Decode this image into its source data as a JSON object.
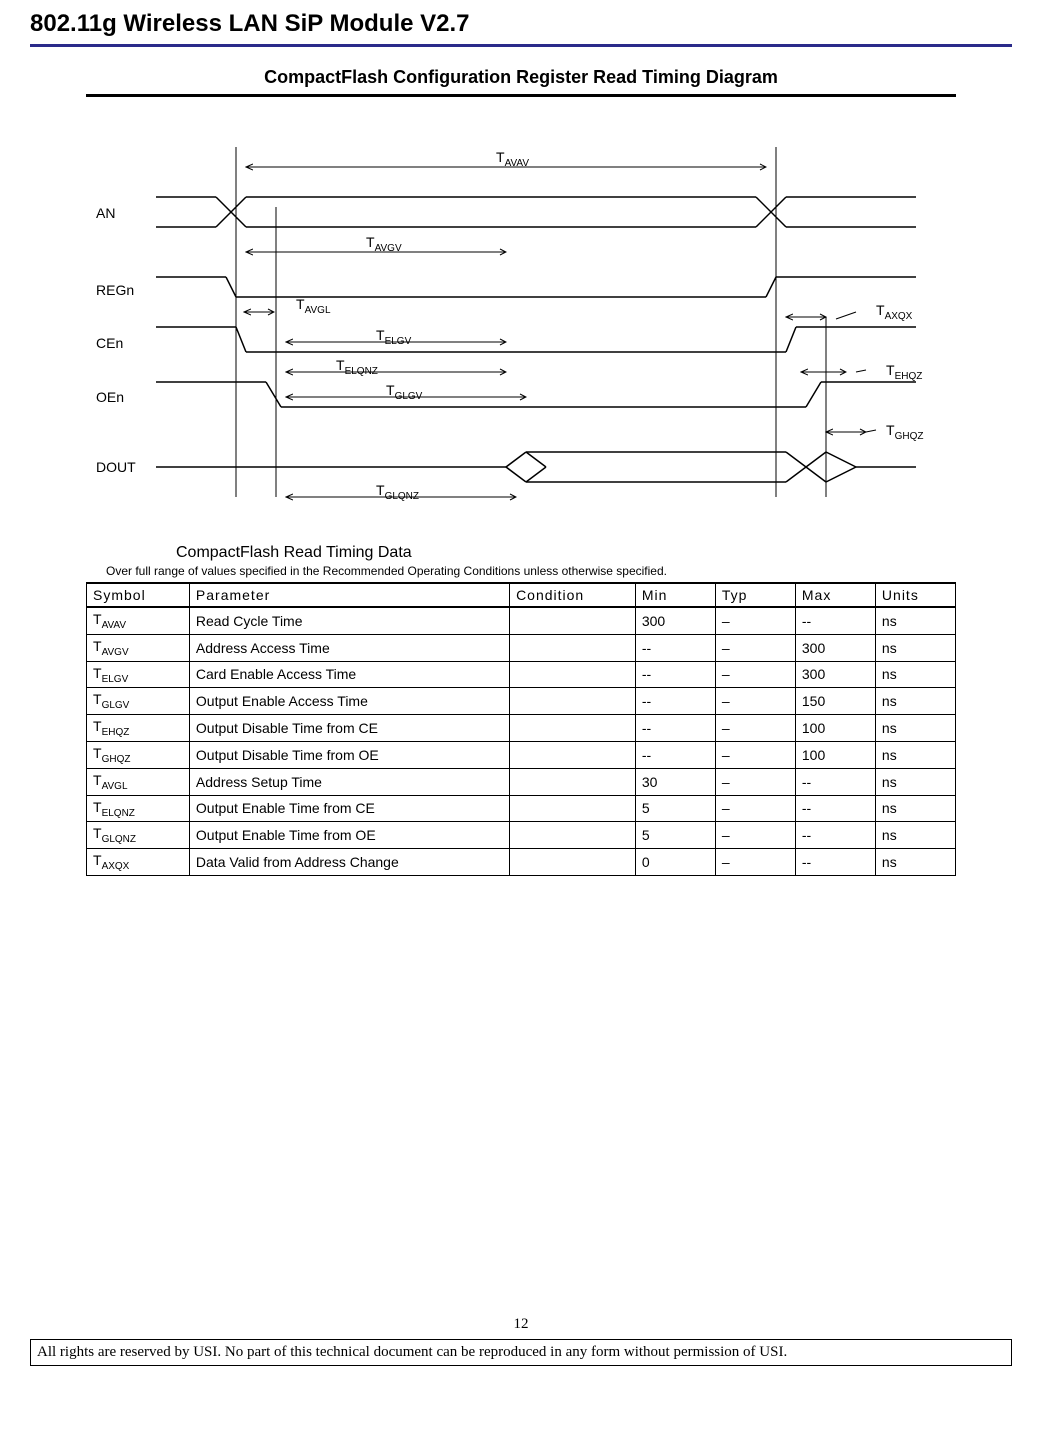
{
  "header": {
    "title": "802.11g Wireless LAN SiP Module V2.7",
    "rule_color": "#2a2a8a"
  },
  "diagram": {
    "title": "CompactFlash Configuration Register Read Timing Diagram",
    "signals": [
      "AN",
      "REGn",
      "CEn",
      "OEn",
      "DOUT"
    ],
    "timing_labels": {
      "t_avav": "T",
      "t_avav_sub": "AVAV",
      "t_avgv": "T",
      "t_avgv_sub": "AVGV",
      "t_avgl": "T",
      "t_avgl_sub": "AVGL",
      "t_elgv": "T",
      "t_elgv_sub": "ELGV",
      "t_elqnz": "T",
      "t_elqnz_sub": "ELQNZ",
      "t_glgv": "T",
      "t_glgv_sub": "GLGV",
      "t_glqnz": "T",
      "t_glqnz_sub": "GLQNZ",
      "t_axqx": "T",
      "t_axqx_sub": "AXQX",
      "t_ehqz": "T",
      "t_ehqz_sub": "EHQZ",
      "t_ghqz": "T",
      "t_ghqz_sub": "GHQZ"
    },
    "line_color": "#000000",
    "background": "#ffffff"
  },
  "table": {
    "title": "CompactFlash Read Timing Data",
    "subtitle": "Over full range of values specified in the Recommended Operating Conditions unless otherwise specified.",
    "columns": [
      "Symbol",
      "Parameter",
      "Condition",
      "Min",
      "Typ",
      "Max",
      "Units"
    ],
    "rows": [
      {
        "sym_main": "T",
        "sym_sub": "AVAV",
        "param": "Read Cycle Time",
        "cond": "",
        "min": "300",
        "typ": "–",
        "max": "--",
        "units": "ns"
      },
      {
        "sym_main": "T",
        "sym_sub": "AVGV",
        "param": "Address Access Time",
        "cond": "",
        "min": "--",
        "typ": "–",
        "max": "300",
        "units": "ns"
      },
      {
        "sym_main": "T",
        "sym_sub": "ELGV",
        "param": "Card Enable Access Time",
        "cond": "",
        "min": "--",
        "typ": "–",
        "max": "300",
        "units": "ns"
      },
      {
        "sym_main": "T",
        "sym_sub": "GLGV",
        "param": "Output Enable Access Time",
        "cond": "",
        "min": "--",
        "typ": "–",
        "max": "150",
        "units": "ns"
      },
      {
        "sym_main": "T",
        "sym_sub": "EHQZ",
        "param": "Output Disable Time from CE",
        "cond": "",
        "min": "--",
        "typ": "–",
        "max": "100",
        "units": "ns"
      },
      {
        "sym_main": "T",
        "sym_sub": "GHQZ",
        "param": "Output Disable Time from OE",
        "cond": "",
        "min": "--",
        "typ": "–",
        "max": "100",
        "units": "ns"
      },
      {
        "sym_main": "T",
        "sym_sub": "AVGL",
        "param": "Address Setup Time",
        "cond": "",
        "min": "30",
        "typ": "–",
        "max": "--",
        "units": "ns"
      },
      {
        "sym_main": "T",
        "sym_sub": "ELQNZ",
        "param": "Output Enable Time from CE",
        "cond": "",
        "min": "5",
        "typ": "–",
        "max": "--",
        "units": "ns"
      },
      {
        "sym_main": "T",
        "sym_sub": "GLQNZ",
        "param": "Output Enable Time from OE",
        "cond": "",
        "min": "5",
        "typ": "–",
        "max": "--",
        "units": "ns"
      },
      {
        "sym_main": "T",
        "sym_sub": "AXQX",
        "param": "Data Valid from Address Change",
        "cond": "",
        "min": "0",
        "typ": "–",
        "max": "--",
        "units": "ns"
      }
    ]
  },
  "footer": {
    "page_number": "12",
    "rights": "All rights are reserved by USI. No part of this technical document can be reproduced in any form without permission of USI."
  }
}
